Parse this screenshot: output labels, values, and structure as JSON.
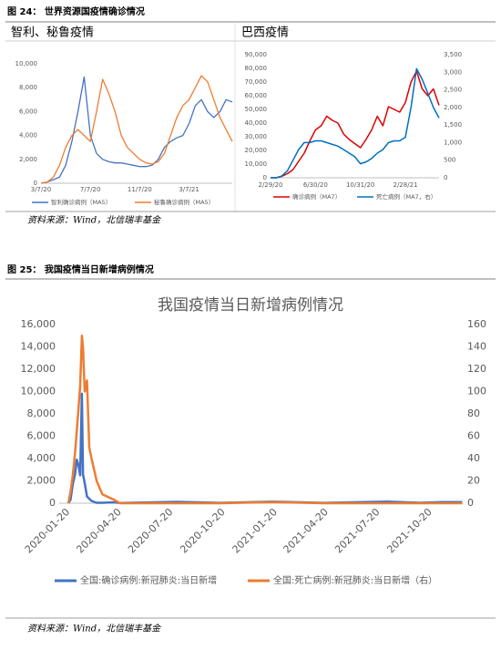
{
  "figures": [
    {
      "caption": "图 24：  世界资源国疫情确诊情况",
      "source": "资料来源：Wind，北信瑞丰基金"
    },
    {
      "caption": "图 25：  我国疫情当日新增病例情况",
      "source": "资料来源：Wind，北信瑞丰基金"
    }
  ],
  "chart_data": [
    {
      "type": "line",
      "title": "智利、秘鲁疫情",
      "x": [
        "3/7/20",
        "3/22/20",
        "4/7/20",
        "4/22/20",
        "5/7/20",
        "5/22/20",
        "6/7/20",
        "6/22/20",
        "7/7/20",
        "7/22/20",
        "8/7/20",
        "8/22/20",
        "9/7/20",
        "9/22/20",
        "10/7/20",
        "10/22/20",
        "11/7/20",
        "11/22/20",
        "12/7/20",
        "12/22/20",
        "1/7/21",
        "1/22/21",
        "2/7/21",
        "2/22/21",
        "3/7/21",
        "3/22/21",
        "4/7/21",
        "4/22/21",
        "5/7/21",
        "5/22/21",
        "6/7/21",
        "6/22/21"
      ],
      "xticks": [
        "3/7/20",
        "7/7/20",
        "11/7/20",
        "3/7/21"
      ],
      "ylim": [
        0,
        10000
      ],
      "yticks": [
        0,
        {
          "value": 2000,
          "label": "2,000"
        },
        {
          "value": 4000,
          "label": "4,000"
        },
        {
          "value": 6000,
          "label": "6,000"
        },
        {
          "value": 8000,
          "label": "8,000"
        },
        {
          "value": 10000,
          "label": "10,000"
        }
      ],
      "grid": false,
      "series": [
        {
          "name": "智利确诊病例（MA5）",
          "color": "#4472c4",
          "values": [
            0,
            100,
            300,
            500,
            1500,
            3500,
            6000,
            8900,
            4000,
            2500,
            2000,
            1800,
            1700,
            1700,
            1600,
            1500,
            1400,
            1400,
            1500,
            2000,
            3000,
            3500,
            3800,
            4000,
            5000,
            6500,
            7000,
            6000,
            5500,
            6000,
            7000,
            6800
          ]
        },
        {
          "name": "秘鲁确诊病例（MA5）",
          "color": "#ed7d31",
          "values": [
            0,
            100,
            500,
            1500,
            3000,
            4000,
            4500,
            4000,
            3500,
            6000,
            8700,
            7500,
            6000,
            4000,
            3000,
            2500,
            2000,
            1700,
            1600,
            1800,
            2500,
            4000,
            5500,
            6500,
            7000,
            8000,
            9000,
            8500,
            7000,
            5500,
            4500,
            3500
          ]
        }
      ]
    },
    {
      "type": "line",
      "title": "巴西疫情",
      "x": [
        "2/29/20",
        "3/15/20",
        "3/31/20",
        "4/15/20",
        "4/30/20",
        "5/15/20",
        "5/31/20",
        "6/15/20",
        "6/30/20",
        "7/15/20",
        "7/31/20",
        "8/15/20",
        "8/31/20",
        "9/15/20",
        "9/30/20",
        "10/15/20",
        "10/31/20",
        "11/15/20",
        "11/30/20",
        "12/15/20",
        "12/31/20",
        "1/15/21",
        "1/31/21",
        "2/15/21",
        "2/28/21",
        "3/15/21",
        "3/31/21",
        "4/15/21",
        "4/30/21",
        "5/15/21",
        "5/31/21"
      ],
      "xticks": [
        "2/29/20",
        "6/30/20",
        "10/31/20",
        "2/28/21"
      ],
      "ylim": [
        0,
        90000
      ],
      "yticks": [
        0,
        {
          "value": 10000,
          "label": "10,000"
        },
        {
          "value": 20000,
          "label": "20,000"
        },
        {
          "value": 30000,
          "label": "30,000"
        },
        {
          "value": 40000,
          "label": "40,000"
        },
        {
          "value": 50000,
          "label": "50,000"
        },
        {
          "value": 60000,
          "label": "60,000"
        },
        {
          "value": 70000,
          "label": "70,000"
        },
        {
          "value": 80000,
          "label": "80,000"
        },
        {
          "value": 90000,
          "label": "90,000"
        }
      ],
      "y2lim": [
        0,
        3500
      ],
      "y2ticks": [
        0,
        500,
        {
          "value": 1000,
          "label": "1,000"
        },
        {
          "value": 1500,
          "label": "1,500"
        },
        {
          "value": 2000,
          "label": "2,000"
        },
        {
          "value": 2500,
          "label": "2,500"
        },
        {
          "value": 3000,
          "label": "3,000"
        },
        {
          "value": 3500,
          "label": "3,500"
        }
      ],
      "grid": false,
      "series": [
        {
          "name": "确诊病例（MA7）",
          "color": "#e00000",
          "values": [
            0,
            0,
            1000,
            3000,
            6000,
            12000,
            18000,
            27000,
            35000,
            38000,
            45000,
            42000,
            40000,
            32000,
            28000,
            25000,
            22000,
            28000,
            35000,
            45000,
            38000,
            52000,
            50000,
            48000,
            55000,
            70000,
            78000,
            65000,
            60000,
            65000,
            53000
          ]
        },
        {
          "name": "死亡病例（MA7，右）",
          "color": "#0070c0",
          "axis": "y2",
          "values": [
            0,
            0,
            50,
            200,
            500,
            800,
            1000,
            1000,
            1050,
            1050,
            1000,
            950,
            900,
            800,
            700,
            600,
            400,
            450,
            550,
            700,
            800,
            1000,
            1050,
            1050,
            1150,
            2000,
            3100,
            2800,
            2400,
            2000,
            1700
          ]
        }
      ]
    },
    {
      "type": "line",
      "title": "我国疫情当日新增病例情况",
      "x_scale": "date",
      "x": [
        "2020-01-20",
        "2020-01-24",
        "2020-01-28",
        "2020-02-01",
        "2020-02-04",
        "2020-02-07",
        "2020-02-10",
        "2020-02-13",
        "2020-02-15",
        "2020-02-18",
        "2020-02-22",
        "2020-02-26",
        "2020-03-01",
        "2020-03-10",
        "2020-03-20",
        "2020-04-10",
        "2020-04-20",
        "2020-07-30",
        "2020-10-15",
        "2021-01-15",
        "2021-04-15",
        "2021-08-05",
        "2021-10-01",
        "2021-11-10",
        "2021-12-15"
      ],
      "xlim": [
        "2020-01-04",
        "2021-12-16"
      ],
      "xticks": [
        "2020-01-20",
        "2020-04-20",
        "2020-07-20",
        "2020-10-20",
        "2021-01-20",
        "2021-04-20",
        "2021-07-20",
        "2021-10-20"
      ],
      "ylim": [
        0,
        16000
      ],
      "yticks": [
        0,
        {
          "value": 2000,
          "label": "2,000"
        },
        {
          "value": 4000,
          "label": "4,000"
        },
        {
          "value": 6000,
          "label": "6,000"
        },
        {
          "value": 8000,
          "label": "8,000"
        },
        {
          "value": 10000,
          "label": "10,000"
        },
        {
          "value": 12000,
          "label": "12,000"
        },
        {
          "value": 14000,
          "label": "14,000"
        },
        {
          "value": 16000,
          "label": "16,000"
        }
      ],
      "y2lim": [
        0,
        160
      ],
      "y2ticks": [
        0,
        20,
        40,
        60,
        80,
        100,
        120,
        140,
        160
      ],
      "grid": false,
      "series": [
        {
          "name": "全国:确诊病例:新冠肺炎:当日新增",
          "color": "#4472c4",
          "values": [
            0,
            300,
            1700,
            2600,
            3900,
            3400,
            2500,
            9800,
            2600,
            1800,
            600,
            400,
            200,
            40,
            40,
            80,
            20,
            120,
            30,
            140,
            30,
            150,
            40,
            100,
            100
          ]
        },
        {
          "name": "全国:死亡病例:新冠肺炎:当日新增（右）",
          "color": "#ed7d31",
          "axis": "y2",
          "values": [
            0,
            10,
            25,
            45,
            65,
            85,
            105,
            150,
            140,
            100,
            110,
            50,
            40,
            20,
            8,
            3,
            0,
            0,
            0,
            1,
            0,
            0,
            0,
            0,
            0
          ]
        }
      ]
    }
  ]
}
